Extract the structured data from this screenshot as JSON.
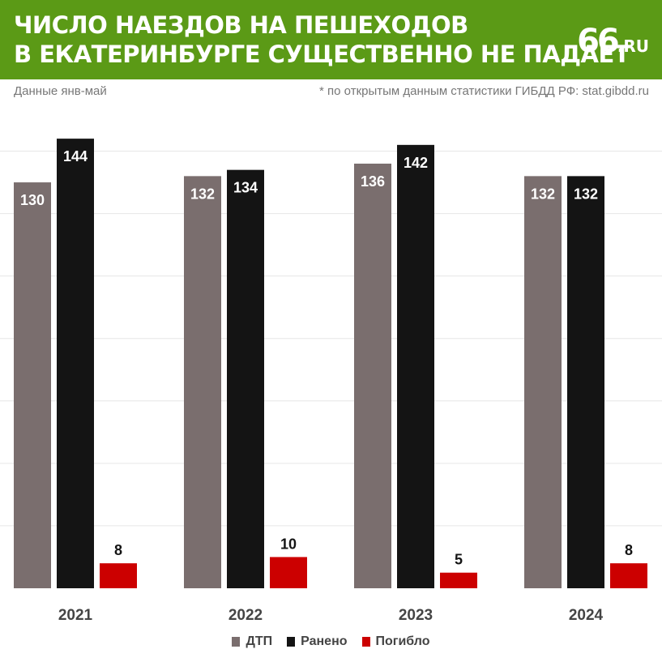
{
  "header": {
    "title_line1": "ЧИСЛО НАЕЗДОВ НА ПЕШЕХОДОВ",
    "title_line2": "В ЕКАТЕРИНБУРГЕ СУЩЕСТВЕННО НЕ ПАДАЕТ",
    "logo_main": "66",
    "logo_suffix": ".RU",
    "background_color": "#5b9a16"
  },
  "subtitle_left": "Данные янв-май",
  "subtitle_right": "* по открытым данным статистики ГИБДД РФ: stat.gibdd.ru",
  "chart_data": {
    "type": "bar",
    "categories": [
      "2021",
      "2022",
      "2023",
      "2024"
    ],
    "series": [
      {
        "name": "ДТП",
        "values": [
          130,
          132,
          136,
          132
        ],
        "color": "#7a6e6e",
        "label_color": "#ffffff"
      },
      {
        "name": "Ранено",
        "values": [
          144,
          134,
          142,
          132
        ],
        "color": "#141414",
        "label_color": "#ffffff"
      },
      {
        "name": "Погибло",
        "values": [
          8,
          10,
          5,
          8
        ],
        "color": "#cc0000",
        "label_color": "#141414"
      }
    ],
    "ylim": [
      0,
      150
    ],
    "grid": true,
    "legend_position": "bottom-center"
  }
}
